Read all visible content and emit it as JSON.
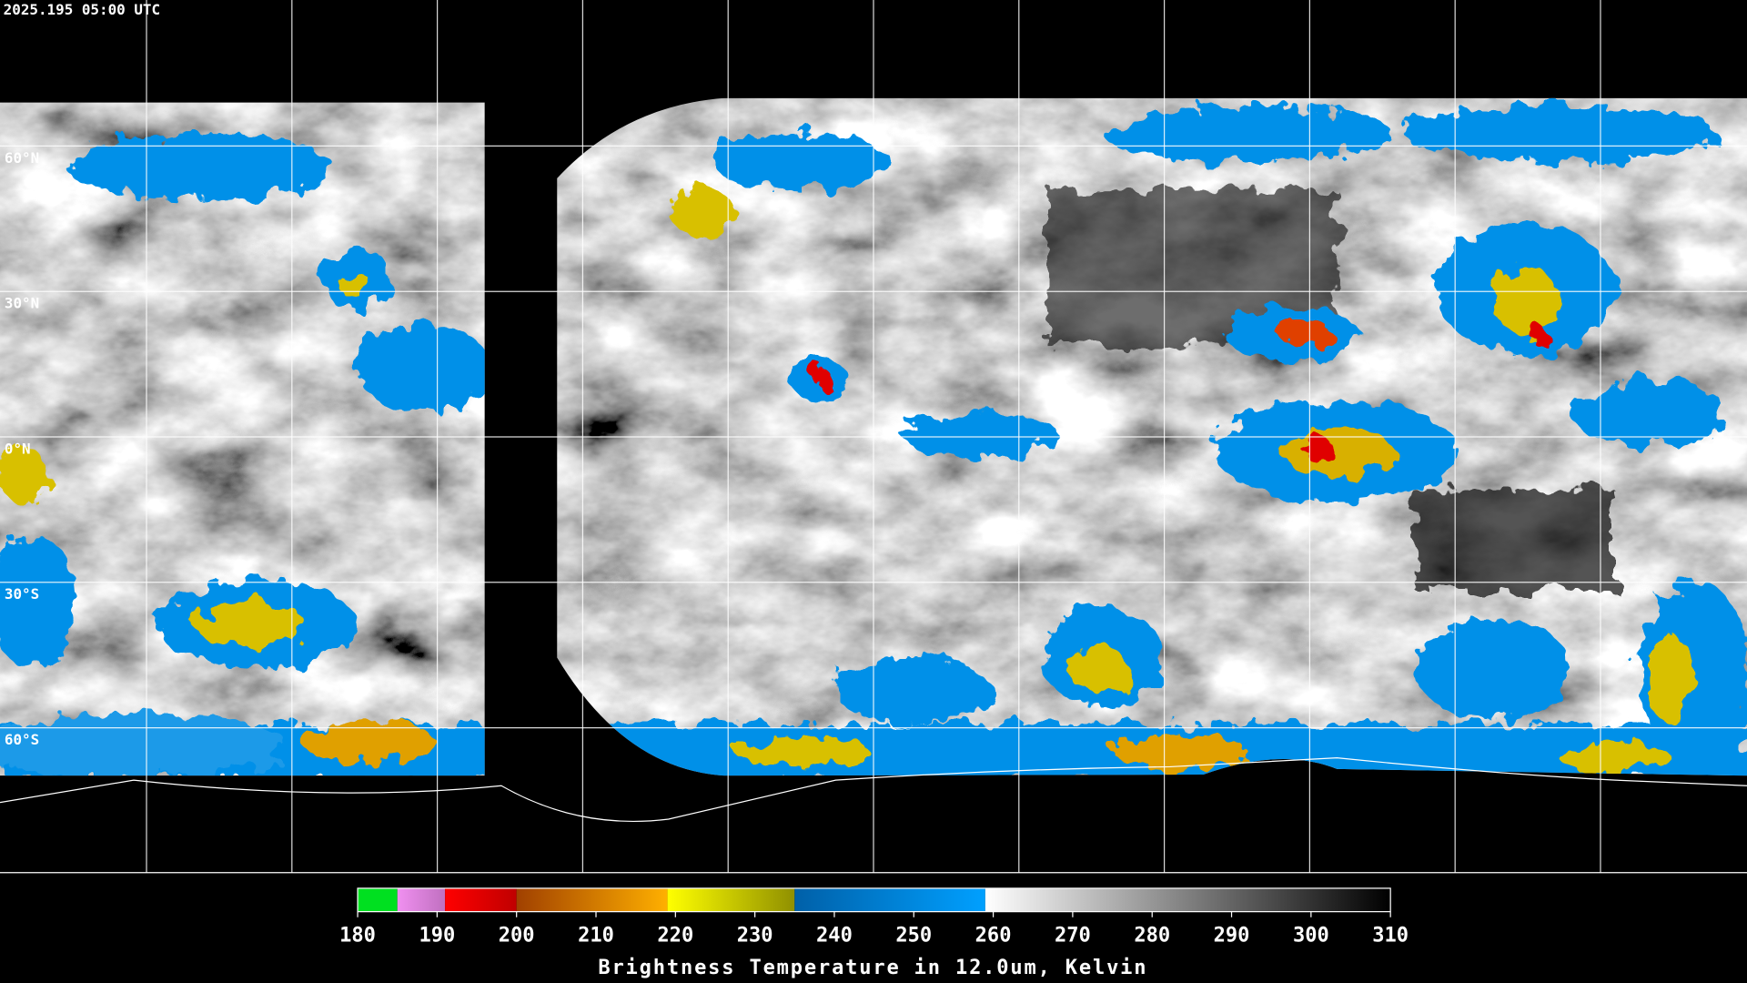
{
  "header": {
    "timestamp": "2025.195 05:00 UTC"
  },
  "map": {
    "graticule": [
      {
        "value": 60,
        "label": "60°N"
      },
      {
        "value": 30,
        "label": "30°N"
      },
      {
        "value": 0,
        "label": "0°N"
      },
      {
        "value": -30,
        "label": "30°S"
      },
      {
        "value": -60,
        "label": "60°S"
      }
    ]
  },
  "colorbar": {
    "title": "Brightness Temperature in 12.0um, Kelvin",
    "range": [
      180,
      310
    ],
    "ticks": [
      180,
      190,
      200,
      210,
      220,
      230,
      240,
      250,
      260,
      270,
      280,
      290,
      300,
      310
    ],
    "segments": [
      {
        "from": 180,
        "to": 185,
        "colors": [
          "#00e020",
          "#00e020"
        ]
      },
      {
        "from": 185,
        "to": 191,
        "colors": [
          "#f090f0",
          "#c070c0"
        ]
      },
      {
        "from": 191,
        "to": 200,
        "colors": [
          "#ff0000",
          "#c00000"
        ]
      },
      {
        "from": 200,
        "to": 219,
        "colors": [
          "#a04000",
          "#ffb000"
        ]
      },
      {
        "from": 219,
        "to": 235,
        "colors": [
          "#ffff00",
          "#909000"
        ]
      },
      {
        "from": 235,
        "to": 259,
        "colors": [
          "#0060a8",
          "#00a0ff"
        ]
      },
      {
        "from": 259,
        "to": 310,
        "colors": [
          "#ffffff",
          "#000000"
        ]
      }
    ]
  }
}
